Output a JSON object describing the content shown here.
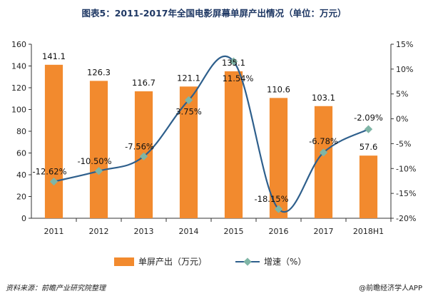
{
  "chart_data": {
    "type": "bar+line",
    "title": "图表5：2011-2017年全国电影屏幕单屏产出情况（单位：万元）",
    "categories": [
      "2011",
      "2012",
      "2013",
      "2014",
      "2015",
      "2016",
      "2017",
      "2018H1"
    ],
    "series": [
      {
        "name": "单屏产出（万元）",
        "type": "bar",
        "axis": "left",
        "color": "#f28a2e",
        "values": [
          141.1,
          126.3,
          116.7,
          121.1,
          135.1,
          110.6,
          103.1,
          57.6
        ],
        "labels": [
          "141.1",
          "126.3",
          "116.7",
          "121.1",
          "135.1",
          "110.6",
          "103.1",
          "57.6"
        ]
      },
      {
        "name": "增速（%）",
        "type": "line",
        "axis": "right",
        "color": "#2e5f8c",
        "marker_color": "#7fb5a6",
        "values": [
          -12.62,
          -10.5,
          -7.56,
          3.75,
          11.54,
          -18.15,
          -6.78,
          -2.09
        ],
        "labels": [
          "-12.62%",
          "-10.50%",
          "-7.56%",
          "3.75%",
          "11.54%",
          "-18.15%",
          "-6.78%",
          "-2.09%"
        ]
      }
    ],
    "ylim_left": [
      0,
      160
    ],
    "yticks_left": [
      "0",
      "20",
      "40",
      "60",
      "80",
      "100",
      "120",
      "140",
      "160"
    ],
    "ylim_right": [
      -20,
      15
    ],
    "yticks_right": [
      "-20%",
      "-15%",
      "-10%",
      "-5%",
      "0%",
      "5%",
      "10%",
      "15%"
    ],
    "grid": false,
    "legend": "bottom"
  },
  "footer": {
    "source": "资料来源：前瞻产业研究院整理",
    "credit": "@前瞻经济学人APP"
  }
}
